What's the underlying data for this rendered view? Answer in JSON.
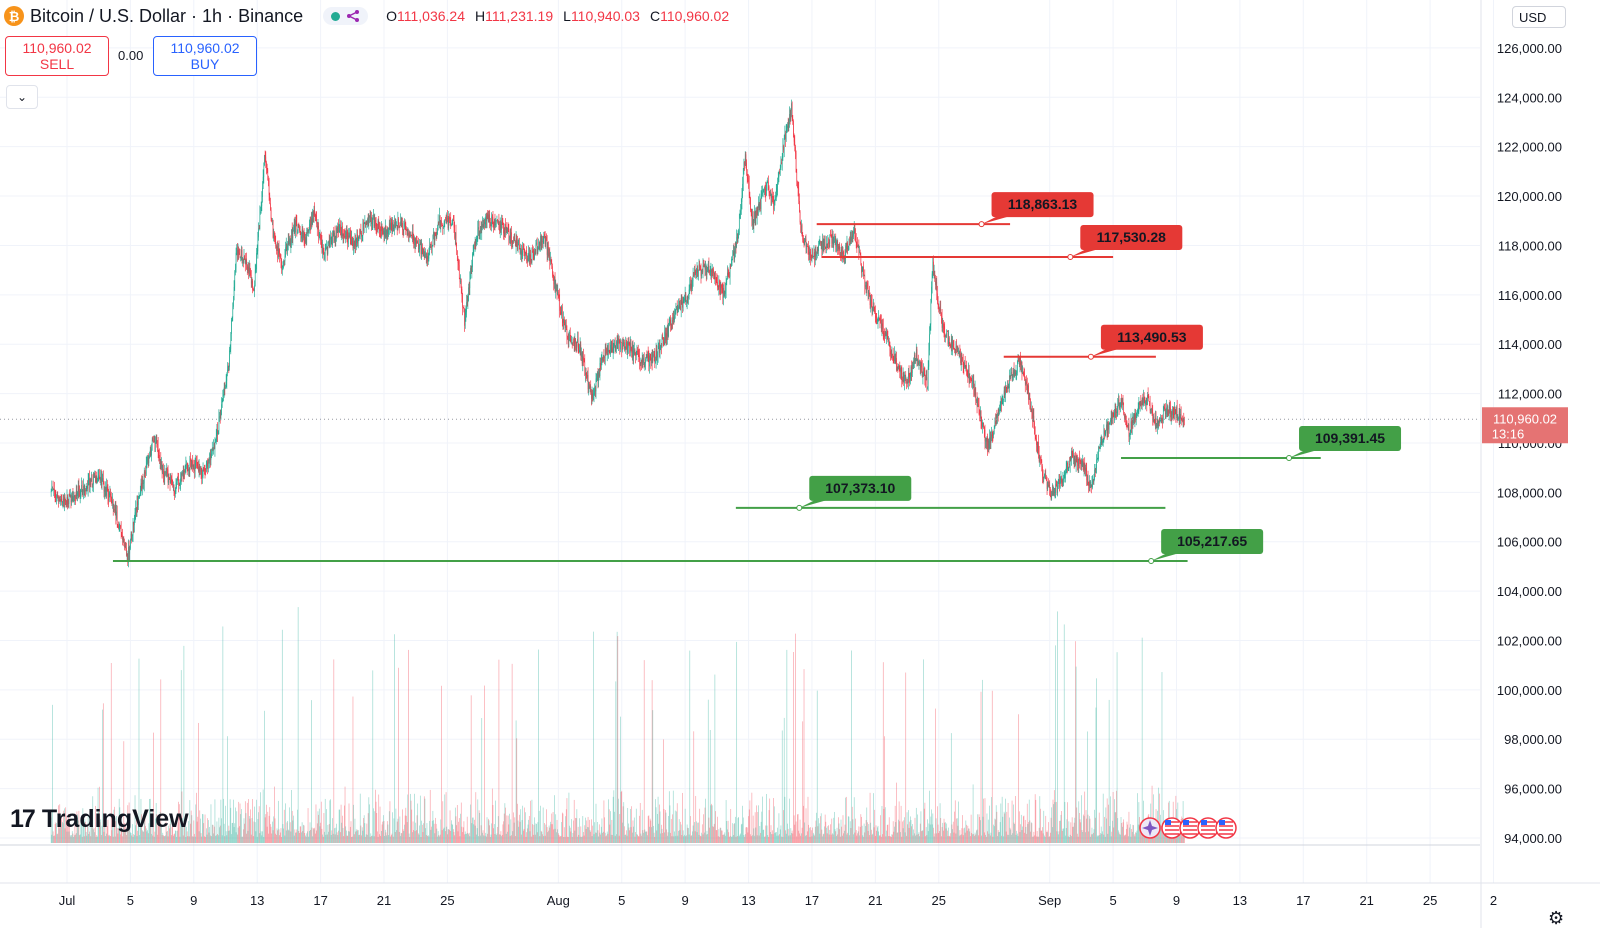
{
  "header": {
    "title": "Bitcoin / U.S. Dollar · 1h · Binance",
    "ohlc": [
      {
        "label": "O",
        "value": "111,036.24"
      },
      {
        "label": "H",
        "value": "111,231.19"
      },
      {
        "label": "L",
        "value": "110,940.03"
      },
      {
        "label": "C",
        "value": "110,960.02"
      }
    ]
  },
  "trade": {
    "sell_price": "110,960.02",
    "sell_label": "SELL",
    "spread": "0.00",
    "buy_price": "110,960.02",
    "buy_label": "BUY"
  },
  "currency": "USD",
  "brand": "TradingView",
  "price_tag": {
    "value": "110,960.02",
    "countdown": "13:16"
  },
  "colors": {
    "up": "#22ab94",
    "down": "#f23645",
    "resistance": "#e53935",
    "support": "#43a047",
    "price_label": "#e57373"
  },
  "chart_data": {
    "type": "candlestick",
    "interval": "1h",
    "y_ticks": [
      "126,000.00",
      "124,000.00",
      "122,000.00",
      "120,000.00",
      "118,000.00",
      "116,000.00",
      "114,000.00",
      "112,000.00",
      "110,000.00",
      "108,000.00",
      "106,000.00",
      "104,000.00",
      "102,000.00",
      "100,000.00",
      "98,000.00",
      "96,000.00",
      "94,000.00"
    ],
    "x_ticks": [
      {
        "label": "Jul",
        "day": 1
      },
      {
        "label": "5",
        "day": 5
      },
      {
        "label": "9",
        "day": 9
      },
      {
        "label": "13",
        "day": 13
      },
      {
        "label": "17",
        "day": 17
      },
      {
        "label": "21",
        "day": 21
      },
      {
        "label": "25",
        "day": 25
      },
      {
        "label": "Aug",
        "day": 32
      },
      {
        "label": "5",
        "day": 36
      },
      {
        "label": "9",
        "day": 40
      },
      {
        "label": "13",
        "day": 44
      },
      {
        "label": "17",
        "day": 48
      },
      {
        "label": "21",
        "day": 52
      },
      {
        "label": "25",
        "day": 56
      },
      {
        "label": "Sep",
        "day": 63
      },
      {
        "label": "5",
        "day": 67
      },
      {
        "label": "9",
        "day": 71
      },
      {
        "label": "13",
        "day": 75
      },
      {
        "label": "17",
        "day": 79
      },
      {
        "label": "21",
        "day": 83
      },
      {
        "label": "25",
        "day": 87
      },
      {
        "label": "2",
        "day": 91
      }
    ],
    "price_path": [
      [
        0.0,
        108000
      ],
      [
        1.0,
        107600
      ],
      [
        2.0,
        108200
      ],
      [
        3.0,
        108700
      ],
      [
        4.0,
        107400
      ],
      [
        4.8,
        105300
      ],
      [
        5.5,
        107800
      ],
      [
        6.5,
        110200
      ],
      [
        7.0,
        109000
      ],
      [
        7.8,
        108200
      ],
      [
        8.8,
        109200
      ],
      [
        9.6,
        108800
      ],
      [
        10.2,
        109600
      ],
      [
        10.7,
        111200
      ],
      [
        11.2,
        113200
      ],
      [
        11.7,
        117800
      ],
      [
        12.1,
        117600
      ],
      [
        12.8,
        116300
      ],
      [
        13.5,
        121800
      ],
      [
        14.0,
        118500
      ],
      [
        14.5,
        117200
      ],
      [
        15.4,
        118800
      ],
      [
        16.1,
        118200
      ],
      [
        16.6,
        119400
      ],
      [
        17.2,
        117600
      ],
      [
        18.1,
        118700
      ],
      [
        19.1,
        118000
      ],
      [
        20.1,
        119200
      ],
      [
        21.0,
        118500
      ],
      [
        22.0,
        119000
      ],
      [
        22.8,
        118400
      ],
      [
        23.7,
        117500
      ],
      [
        24.5,
        119000
      ],
      [
        25.4,
        118900
      ],
      [
        26.1,
        114900
      ],
      [
        26.7,
        118200
      ],
      [
        27.5,
        119100
      ],
      [
        28.4,
        118800
      ],
      [
        29.4,
        118000
      ],
      [
        30.2,
        117400
      ],
      [
        31.1,
        118400
      ],
      [
        32.0,
        115800
      ],
      [
        32.6,
        114400
      ],
      [
        33.3,
        113900
      ],
      [
        34.1,
        111800
      ],
      [
        34.9,
        113600
      ],
      [
        35.7,
        114100
      ],
      [
        36.6,
        113800
      ],
      [
        37.3,
        113300
      ],
      [
        38.0,
        113400
      ],
      [
        38.8,
        114400
      ],
      [
        39.5,
        115400
      ],
      [
        40.2,
        116100
      ],
      [
        40.8,
        117000
      ],
      [
        41.6,
        117000
      ],
      [
        42.4,
        116000
      ],
      [
        43.3,
        118200
      ],
      [
        43.8,
        121800
      ],
      [
        44.2,
        118900
      ],
      [
        45.2,
        120400
      ],
      [
        45.6,
        119600
      ],
      [
        46.3,
        122400
      ],
      [
        46.7,
        123600
      ],
      [
        47.3,
        118700
      ],
      [
        47.9,
        117400
      ],
      [
        48.6,
        118000
      ],
      [
        49.3,
        118300
      ],
      [
        50.0,
        117600
      ],
      [
        50.7,
        118500
      ],
      [
        51.3,
        116600
      ],
      [
        52.0,
        115100
      ],
      [
        52.6,
        114500
      ],
      [
        53.4,
        113000
      ],
      [
        54.0,
        112500
      ],
      [
        54.6,
        113600
      ],
      [
        55.3,
        112300
      ],
      [
        55.6,
        117200
      ],
      [
        56.3,
        114500
      ],
      [
        57.2,
        113600
      ],
      [
        58.2,
        112300
      ],
      [
        59.1,
        109800
      ],
      [
        59.8,
        111500
      ],
      [
        60.5,
        112600
      ],
      [
        61.1,
        113300
      ],
      [
        61.7,
        111900
      ],
      [
        62.5,
        108900
      ],
      [
        63.1,
        107800
      ],
      [
        63.7,
        108500
      ],
      [
        64.4,
        109500
      ],
      [
        65.2,
        109000
      ],
      [
        65.6,
        108000
      ],
      [
        66.1,
        109800
      ],
      [
        66.9,
        111100
      ],
      [
        67.5,
        111800
      ],
      [
        68.0,
        110500
      ],
      [
        68.6,
        111500
      ],
      [
        69.2,
        111700
      ],
      [
        69.7,
        110700
      ],
      [
        70.3,
        111300
      ],
      [
        70.8,
        111300
      ],
      [
        71.5,
        110960
      ]
    ],
    "resistance_levels": [
      {
        "label": "118,863.13",
        "price": 118863.13,
        "line_start_day": 48.3,
        "line_end_day": 60.5,
        "anchor_day": 58.7
      },
      {
        "label": "117,530.28",
        "price": 117530.28,
        "line_start_day": 48.6,
        "line_end_day": 67.0,
        "anchor_day": 64.3
      },
      {
        "label": "113,490.53",
        "price": 113490.53,
        "line_start_day": 60.1,
        "line_end_day": 69.7,
        "anchor_day": 65.6
      }
    ],
    "support_levels": [
      {
        "label": "109,391.45",
        "price": 109391.45,
        "line_start_day": 67.5,
        "line_end_day": 80.1,
        "anchor_day": 78.1
      },
      {
        "label": "107,373.10",
        "price": 107373.1,
        "line_start_day": 43.2,
        "line_end_day": 70.3,
        "anchor_day": 47.2
      },
      {
        "label": "105,217.65",
        "price": 105217.65,
        "line_start_day": 3.9,
        "line_end_day": 71.7,
        "anchor_day": 69.4
      }
    ],
    "last_price": 110960.02
  }
}
